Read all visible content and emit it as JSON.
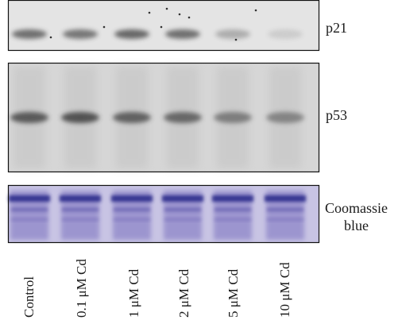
{
  "panels": {
    "p21": {
      "label": "p21",
      "background": "#e4e4e4",
      "band_color": "#4a4a4a",
      "band_intensities": [
        0.75,
        0.7,
        0.8,
        0.75,
        0.35,
        0.15
      ]
    },
    "p53": {
      "label": "p53",
      "background": "#d6d6d6",
      "band_color": "#3c3c3c",
      "band_intensities": [
        0.8,
        0.85,
        0.75,
        0.7,
        0.55,
        0.5
      ]
    },
    "coomassie": {
      "label_line1": "Coomassie",
      "label_line2": "blue",
      "background": "#c8c4e4",
      "band_color": "#2a2a8a"
    }
  },
  "lanes": [
    "Control",
    "0.1 μM Cd",
    "1 μM Cd",
    "2 μM Cd",
    "5 μM Cd",
    "10 μM Cd"
  ]
}
